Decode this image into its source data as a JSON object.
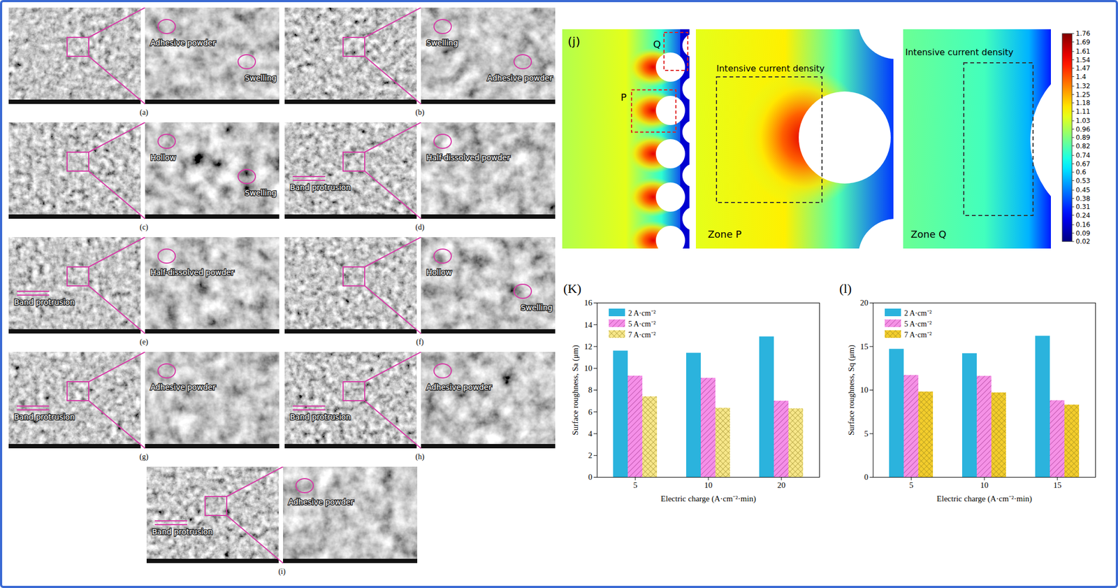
{
  "chart_data": [
    {
      "type": "bar",
      "title": "(K)",
      "xlabel": "Electric charge (A·cm⁻²·min)",
      "ylabel": "Surface roughness, Sa (μm)",
      "categories": [
        "5",
        "10",
        "20"
      ],
      "series": [
        {
          "name": "2 A·cm⁻²",
          "color": "#2bb3dd",
          "values": [
            11.6,
            11.4,
            12.9
          ]
        },
        {
          "name": "5 A·cm⁻²",
          "color": "#f58fe8",
          "values": [
            9.3,
            9.1,
            7.0
          ]
        },
        {
          "name": "7 A·cm⁻²",
          "color": "#f7e78a",
          "values": [
            7.4,
            6.35,
            6.3
          ]
        }
      ],
      "ylim": [
        0,
        16
      ],
      "yticks": [
        0,
        2,
        4,
        6,
        8,
        10,
        12,
        14,
        16
      ],
      "grid": false,
      "legend": "top-left"
    },
    {
      "type": "bar",
      "title": "(l)",
      "xlabel": "Electric charge (A·cm⁻²·min)",
      "ylabel": "Surface roughness, Sq (μm)",
      "categories": [
        "5",
        "10",
        "15"
      ],
      "series": [
        {
          "name": "2 A·cm⁻²",
          "color": "#2bb3dd",
          "values": [
            14.7,
            14.2,
            16.2
          ]
        },
        {
          "name": "5 A·cm⁻²",
          "color": "#f591e6",
          "values": [
            11.7,
            11.6,
            8.8
          ]
        },
        {
          "name": "7 A·cm⁻²",
          "color": "#f3cd2c",
          "values": [
            9.8,
            9.7,
            8.3
          ]
        }
      ],
      "ylim": [
        0,
        20
      ],
      "yticks": [
        0,
        5,
        10,
        15,
        20
      ],
      "grid": false,
      "legend": "top-left"
    }
  ],
  "sem_figure": {
    "panels": [
      {
        "label": "(a)",
        "low_mag_annotations": [],
        "zoom_annotations": [
          "Adhesive powder",
          "Swelling"
        ]
      },
      {
        "label": "(b)",
        "low_mag_annotations": [],
        "zoom_annotations": [
          "Swelling",
          "Adhesive powder"
        ]
      },
      {
        "label": "(c)",
        "low_mag_annotations": [],
        "zoom_annotations": [
          "Hollow",
          "Swelling"
        ]
      },
      {
        "label": "(d)",
        "low_mag_annotations": [
          "Band protrusion"
        ],
        "zoom_annotations": [
          "Half-dissolved powder"
        ]
      },
      {
        "label": "(e)",
        "low_mag_annotations": [
          "Band protrusion"
        ],
        "zoom_annotations": [
          "Half-dissolved powder"
        ]
      },
      {
        "label": "(f)",
        "low_mag_annotations": [],
        "zoom_annotations": [
          "Hollow",
          "Swelling"
        ]
      },
      {
        "label": "(g)",
        "low_mag_annotations": [
          "Band protrusion"
        ],
        "zoom_annotations": [
          "Adhesive powder"
        ]
      },
      {
        "label": "(h)",
        "low_mag_annotations": [
          "Band protrusion"
        ],
        "zoom_annotations": [
          "Adhesive powder"
        ]
      },
      {
        "label": "(i)",
        "low_mag_annotations": [
          "Band protrusion"
        ],
        "zoom_annotations": [
          "Adhesive powder"
        ]
      }
    ]
  },
  "simulation": {
    "label": "(j)",
    "markers": [
      "P",
      "Q"
    ],
    "zooms": [
      {
        "title": "Zone P",
        "annotation": "Intensive current density"
      },
      {
        "title": "Zone Q",
        "annotation": "Intensive current density"
      }
    ],
    "colorbar": {
      "range": [
        0.02,
        1.76
      ],
      "ticks": [
        1.76,
        1.69,
        1.61,
        1.54,
        1.47,
        1.4,
        1.32,
        1.25,
        1.18,
        1.11,
        1.03,
        0.96,
        0.89,
        0.82,
        0.74,
        0.67,
        0.6,
        0.53,
        0.45,
        0.38,
        0.31,
        0.24,
        0.16,
        0.09,
        0.02
      ]
    }
  }
}
